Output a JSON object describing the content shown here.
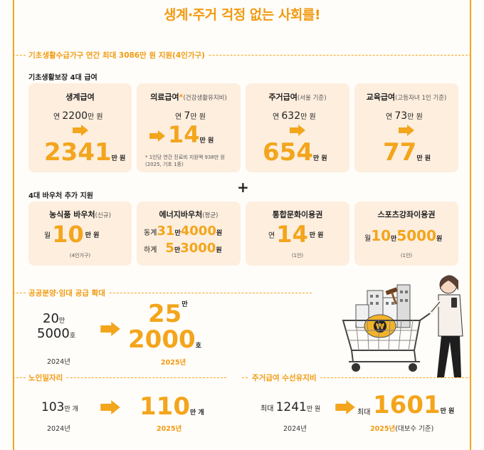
{
  "title": "생계·주거 걱정 없는 사회를!",
  "section1": {
    "label": "기초생활수급가구 연간 최대 3086만 원 지원(4인가구)",
    "subsection1": "기초생활보장 4대 급여",
    "cards": [
      {
        "title": "생계급여",
        "sub": "",
        "from_prefix": "연 ",
        "from": "2200",
        "from_unit": "만 원",
        "to": "2341",
        "to_unit": "만 원"
      },
      {
        "title": "의료급여",
        "star": "*",
        "sub": "(건강생활유지비)",
        "from_prefix": "연 ",
        "from": "7",
        "from_unit": "만 원",
        "to": "14",
        "to_unit": "만 원",
        "note1": "* 1인당 연간 진료비 지원액 938만 원",
        "note2": "(2025, 기초 1종)"
      },
      {
        "title": "주거급여",
        "sub": "(서울 기준)",
        "from_prefix": "연 ",
        "from": "632",
        "from_unit": "만 원",
        "to": "654",
        "to_unit": "만 원"
      },
      {
        "title": "교육급여",
        "sub": "(고등자녀 1인 기준)",
        "from_prefix": "연 ",
        "from": "73",
        "from_unit": "만 원",
        "to": "77",
        "to_unit": "만 원"
      }
    ],
    "plus": "+",
    "subsection2": "4대 바우처 추가 지원",
    "vouchers": [
      {
        "title": "농식품 바우처",
        "sub": "(신규)",
        "prefix": "월 ",
        "value": "10",
        "unit": "만 원",
        "note": "(4인가구)"
      },
      {
        "title": "에너지바우처",
        "sub": "(평균)",
        "row1_label": "동계 ",
        "row1_v1": "31",
        "row1_u1": "만 ",
        "row1_v2": "4000",
        "row1_u2": "원",
        "row2_label": "하계 ",
        "row2_v1": "5",
        "row2_u1": "만 ",
        "row2_v2": "3000",
        "row2_u2": "원"
      },
      {
        "title": "통합문화이용권",
        "sub": "",
        "prefix": "연 ",
        "value": "14",
        "unit": "만 원",
        "note": "(1인)"
      },
      {
        "title": "스포츠강좌이용권",
        "sub": "",
        "prefix": "월 ",
        "value1": "10",
        "unit1": "만 ",
        "value2": "5000",
        "unit2": "원",
        "note": "(1인)"
      }
    ]
  },
  "section2": {
    "label": "공공분양·임대 공급 확대",
    "from_line1": "20",
    "from_line1_unit": "만",
    "from_line2": "5000",
    "from_line2_unit": "호",
    "from_year": "2024년",
    "to_line1": "25",
    "to_line1_unit": "만",
    "to_line2": "2000",
    "to_line2_unit": "호",
    "to_year": "2025년"
  },
  "section3": {
    "label": "노인일자리",
    "from": "103",
    "from_unit": "만 개",
    "from_year": "2024년",
    "to": "110",
    "to_unit": "만 개",
    "to_year": "2025년"
  },
  "section4": {
    "label": "주거급여 수선유지비",
    "from_prefix": "최대 ",
    "from": "1241",
    "from_unit": "만 원",
    "from_year": "2024년",
    "to_prefix": "최대",
    "to": "1601",
    "to_unit": "만 원",
    "to_year": "2025년",
    "to_year_note": "(대보수 기준)"
  },
  "illustration": {
    "coin_symbol": "₩"
  },
  "colors": {
    "accent": "#f3a51c",
    "card_bg": "#fdeede",
    "text": "#222222"
  }
}
